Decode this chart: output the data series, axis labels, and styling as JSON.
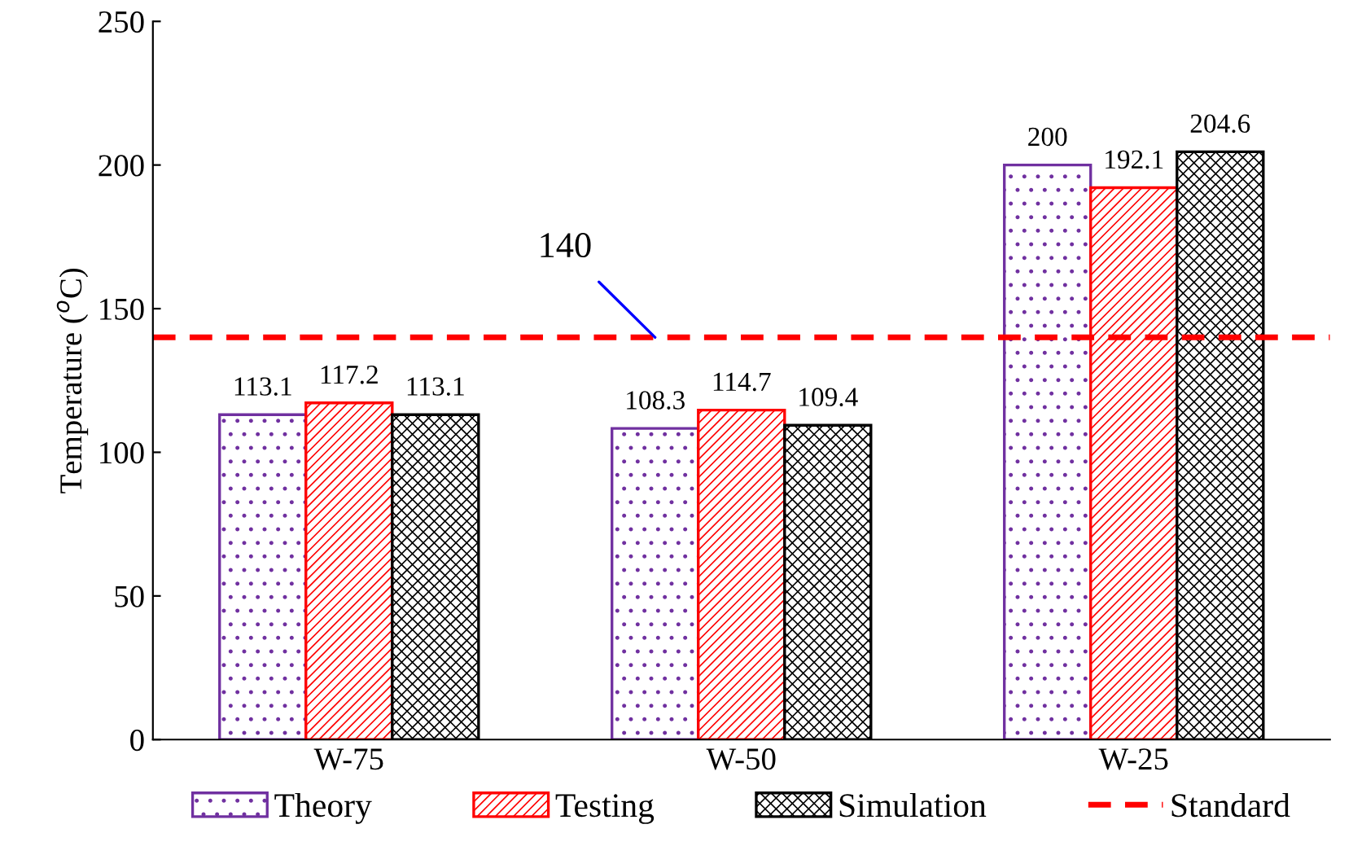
{
  "chart_data": {
    "type": "bar",
    "ylabel": "Temperature ($^{o}$C)",
    "categories": [
      "W-75",
      "W-50",
      "W-25"
    ],
    "series": [
      {
        "name": "Theory",
        "color": "#7030a0",
        "values": [
          113.1,
          108.3,
          200
        ]
      },
      {
        "name": "Testing",
        "color": "#ff0000",
        "values": [
          117.2,
          114.7,
          192.1
        ]
      },
      {
        "name": "Simulation",
        "color": "#000000",
        "values": [
          113.1,
          109.4,
          204.6
        ]
      }
    ],
    "ref_lines": [
      {
        "axis": "y",
        "value": 140,
        "label": "Standard",
        "color": "#ff0000",
        "line_style": "dashed"
      }
    ],
    "annotations": [
      {
        "text": "140",
        "y": 140
      }
    ],
    "ylim": [
      0,
      250
    ],
    "yticks": [
      0,
      50,
      100,
      150,
      200,
      250
    ],
    "data_labels": true,
    "grid": false,
    "legend": "bottom"
  }
}
